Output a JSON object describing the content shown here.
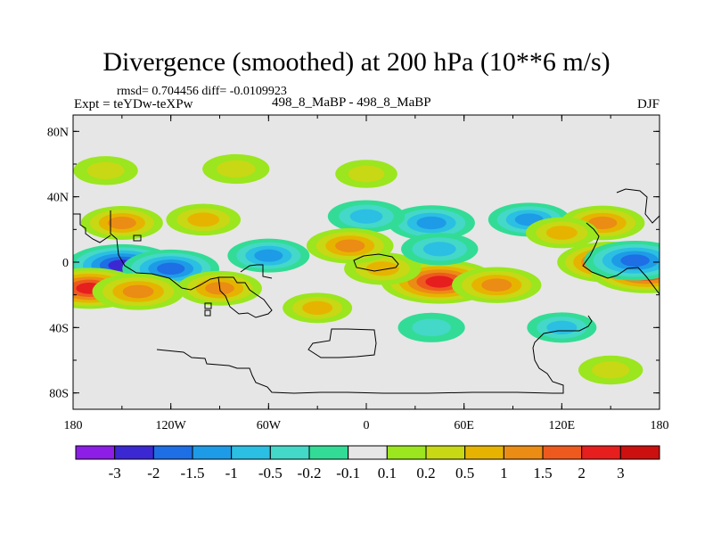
{
  "header": {
    "title": "Divergence (smoothed) at 200 hPa (10**6 m/s)",
    "stats": "rmsd= 0.704456 diff= -0.0109923",
    "expt": "Expt = teYDw-teXPw",
    "case": "498_8_MaBP - 498_8_MaBP",
    "season": "DJF"
  },
  "chart_data": {
    "type": "heatmap",
    "title": "Divergence (smoothed) at 200 hPa (10**6 m/s)",
    "xlabel": "",
    "ylabel": "",
    "x_ticks": [
      -180,
      -120,
      -60,
      0,
      60,
      120,
      180
    ],
    "x_tick_labels": [
      "180",
      "120W",
      "60W",
      "0",
      "60E",
      "120E",
      "180"
    ],
    "y_ticks": [
      80,
      40,
      0,
      -40,
      -80
    ],
    "y_tick_labels": [
      "80N",
      "40N",
      "0",
      "40S",
      "80S"
    ],
    "xlim": [
      -180,
      180
    ],
    "ylim": [
      -90,
      90
    ],
    "colorbar": {
      "labels": [
        "-3",
        "-2",
        "-1.5",
        "-1",
        "-0.5",
        "-0.2",
        "-0.1",
        "0.1",
        "0.2",
        "0.5",
        "1",
        "1.5",
        "2",
        "3"
      ],
      "colors": [
        "#8c1ee6",
        "#3c28d2",
        "#1e6ee6",
        "#1e9be6",
        "#2bbfe3",
        "#44d8c8",
        "#32dc96",
        "#e6e6e6",
        "#9be61e",
        "#c8d814",
        "#e6b400",
        "#eb8c14",
        "#ee5a1e",
        "#e61e1e",
        "#cc1010"
      ]
    },
    "features": [
      {
        "lon": -150,
        "lat": -2,
        "value": -2.2
      },
      {
        "lon": -120,
        "lat": -4,
        "value": -1.6
      },
      {
        "lon": -60,
        "lat": 4,
        "value": -1.0
      },
      {
        "lon": -170,
        "lat": -16,
        "value": 2.0
      },
      {
        "lon": -140,
        "lat": -18,
        "value": 1.4
      },
      {
        "lon": -90,
        "lat": -16,
        "value": 1.1
      },
      {
        "lon": -150,
        "lat": 24,
        "value": 1.0
      },
      {
        "lon": -100,
        "lat": 26,
        "value": 0.7
      },
      {
        "lon": 45,
        "lat": -12,
        "value": 2.4
      },
      {
        "lon": 80,
        "lat": -14,
        "value": 1.3
      },
      {
        "lon": 10,
        "lat": -4,
        "value": 0.8
      },
      {
        "lon": 40,
        "lat": 24,
        "value": -1.2
      },
      {
        "lon": 100,
        "lat": 26,
        "value": -1.0
      },
      {
        "lon": 0,
        "lat": 28,
        "value": -0.8
      },
      {
        "lon": 45,
        "lat": 8,
        "value": -0.8
      },
      {
        "lon": -10,
        "lat": 10,
        "value": 1.2
      },
      {
        "lon": 150,
        "lat": 0,
        "value": 2.0
      },
      {
        "lon": 172,
        "lat": -6,
        "value": 2.2
      },
      {
        "lon": 165,
        "lat": 1,
        "value": -1.8
      },
      {
        "lon": 145,
        "lat": 24,
        "value": 1.1
      },
      {
        "lon": 120,
        "lat": 18,
        "value": 0.6
      },
      {
        "lon": -30,
        "lat": -28,
        "value": 0.5
      },
      {
        "lon": 120,
        "lat": -40,
        "value": -0.5
      },
      {
        "lon": 40,
        "lat": -40,
        "value": -0.4
      },
      {
        "lon": -160,
        "lat": 56,
        "value": 0.3
      },
      {
        "lon": -80,
        "lat": 57,
        "value": 0.4
      },
      {
        "lon": 150,
        "lat": -66,
        "value": 0.3
      },
      {
        "lon": 0,
        "lat": 54,
        "value": 0.2
      }
    ]
  }
}
